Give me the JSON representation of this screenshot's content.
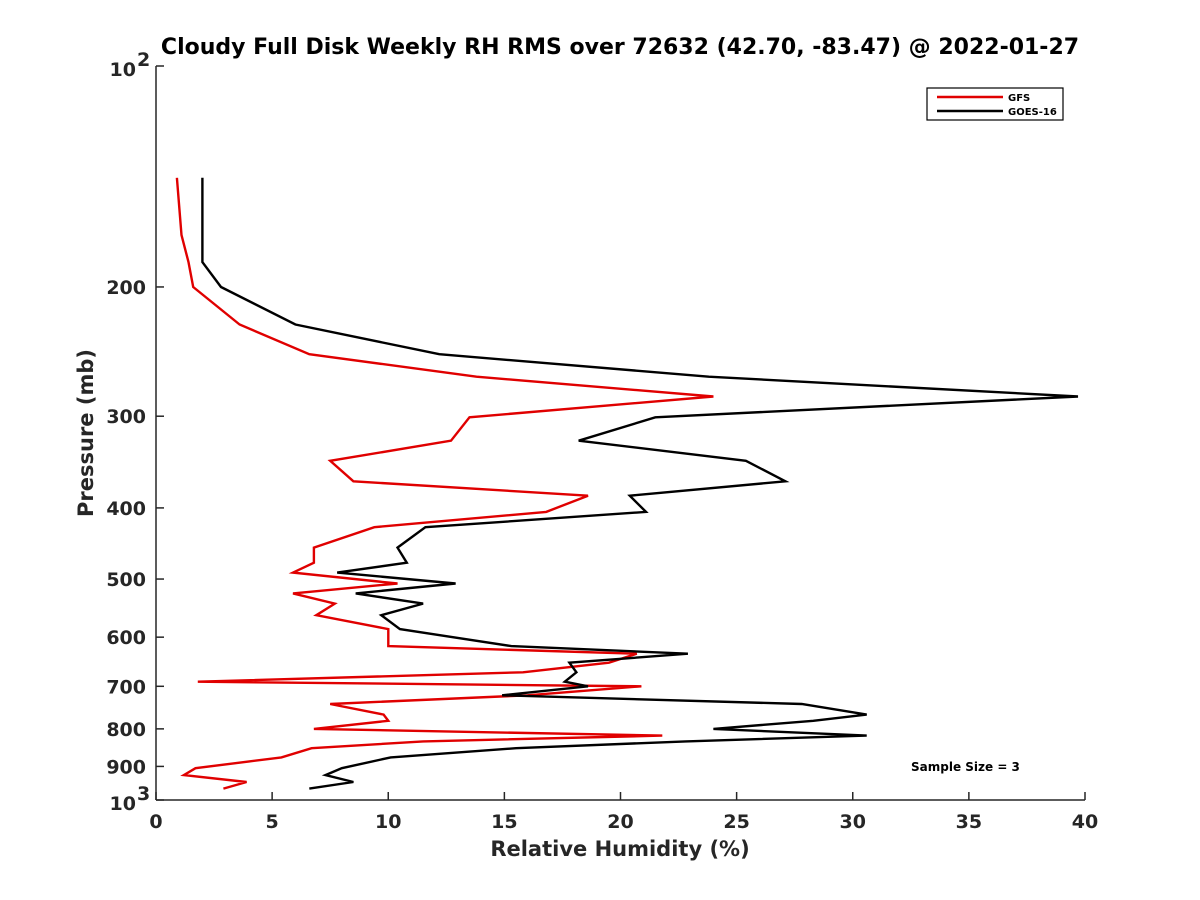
{
  "chart_data": {
    "type": "line",
    "title": "Cloudy Full Disk Weekly RH RMS over 72632 (42.70, -83.47) @ 2022-01-27",
    "xlabel": "Relative Humidity (%)",
    "ylabel": "Pressure (mb)",
    "xlim": [
      0,
      40
    ],
    "ylim": [
      100,
      1000
    ],
    "y_scale": "log",
    "y_reversed": true,
    "grid": false,
    "legend_position": "top-right",
    "x_ticks": [
      0,
      5,
      10,
      15,
      20,
      25,
      30,
      35,
      40
    ],
    "x_tick_labels": [
      "0",
      "5",
      "10",
      "15",
      "20",
      "25",
      "30",
      "35",
      "40"
    ],
    "y_ticks": [
      200,
      300,
      400,
      500,
      600,
      700,
      800,
      900
    ],
    "y_tick_labels": [
      "200",
      "300",
      "400",
      "500",
      "600",
      "700",
      "800",
      "900"
    ],
    "y_decade_labels": [
      {
        "value": 100,
        "base": "10",
        "exp": "2"
      },
      {
        "value": 1000,
        "base": "10",
        "exp": "3"
      }
    ],
    "annotation": "Sample Size = 3",
    "series": [
      {
        "name": "GFS",
        "color": "#e00000",
        "x": [
          0.9,
          1.1,
          1.4,
          1.6,
          3.6,
          6.6,
          13.8,
          24.0,
          13.5,
          12.7,
          7.5,
          8.5,
          18.6,
          16.8,
          9.4,
          6.8,
          6.8,
          5.9,
          10.4,
          5.9,
          7.7,
          6.9,
          10.0,
          10.0,
          20.7,
          19.5,
          15.8,
          1.8,
          20.9,
          16.0,
          7.5,
          9.8,
          10.0,
          6.8,
          21.8,
          11.5,
          6.7,
          5.4,
          1.7,
          1.2,
          3.9,
          2.9
        ],
        "y": [
          142,
          170,
          185,
          200,
          225,
          247,
          265,
          282,
          301,
          324,
          345,
          368,
          385,
          405,
          425,
          453,
          475,
          490,
          507,
          523,
          540,
          560,
          585,
          617,
          632,
          650,
          670,
          690,
          700,
          720,
          740,
          765,
          780,
          800,
          817,
          832,
          850,
          875,
          905,
          925,
          945,
          965
        ]
      },
      {
        "name": "GOES-16",
        "color": "#000000",
        "x": [
          2.0,
          2.0,
          2.0,
          2.8,
          6.0,
          12.2,
          23.8,
          39.7,
          21.5,
          18.2,
          25.4,
          27.1,
          20.4,
          21.1,
          11.6,
          10.4,
          10.8,
          7.8,
          12.9,
          8.6,
          11.5,
          9.7,
          10.5,
          15.3,
          22.9,
          17.8,
          18.1,
          17.6,
          18.6,
          14.9,
          27.8,
          30.6,
          28.3,
          24.0,
          30.6,
          22.8,
          15.5,
          10.1,
          8.0,
          7.3,
          8.5,
          6.6
        ],
        "y": [
          142,
          170,
          185,
          200,
          225,
          247,
          265,
          282,
          301,
          324,
          345,
          368,
          385,
          405,
          425,
          453,
          475,
          490,
          507,
          523,
          540,
          560,
          585,
          617,
          632,
          650,
          670,
          690,
          700,
          720,
          740,
          765,
          780,
          800,
          817,
          832,
          850,
          875,
          905,
          925,
          945,
          965
        ]
      }
    ]
  }
}
